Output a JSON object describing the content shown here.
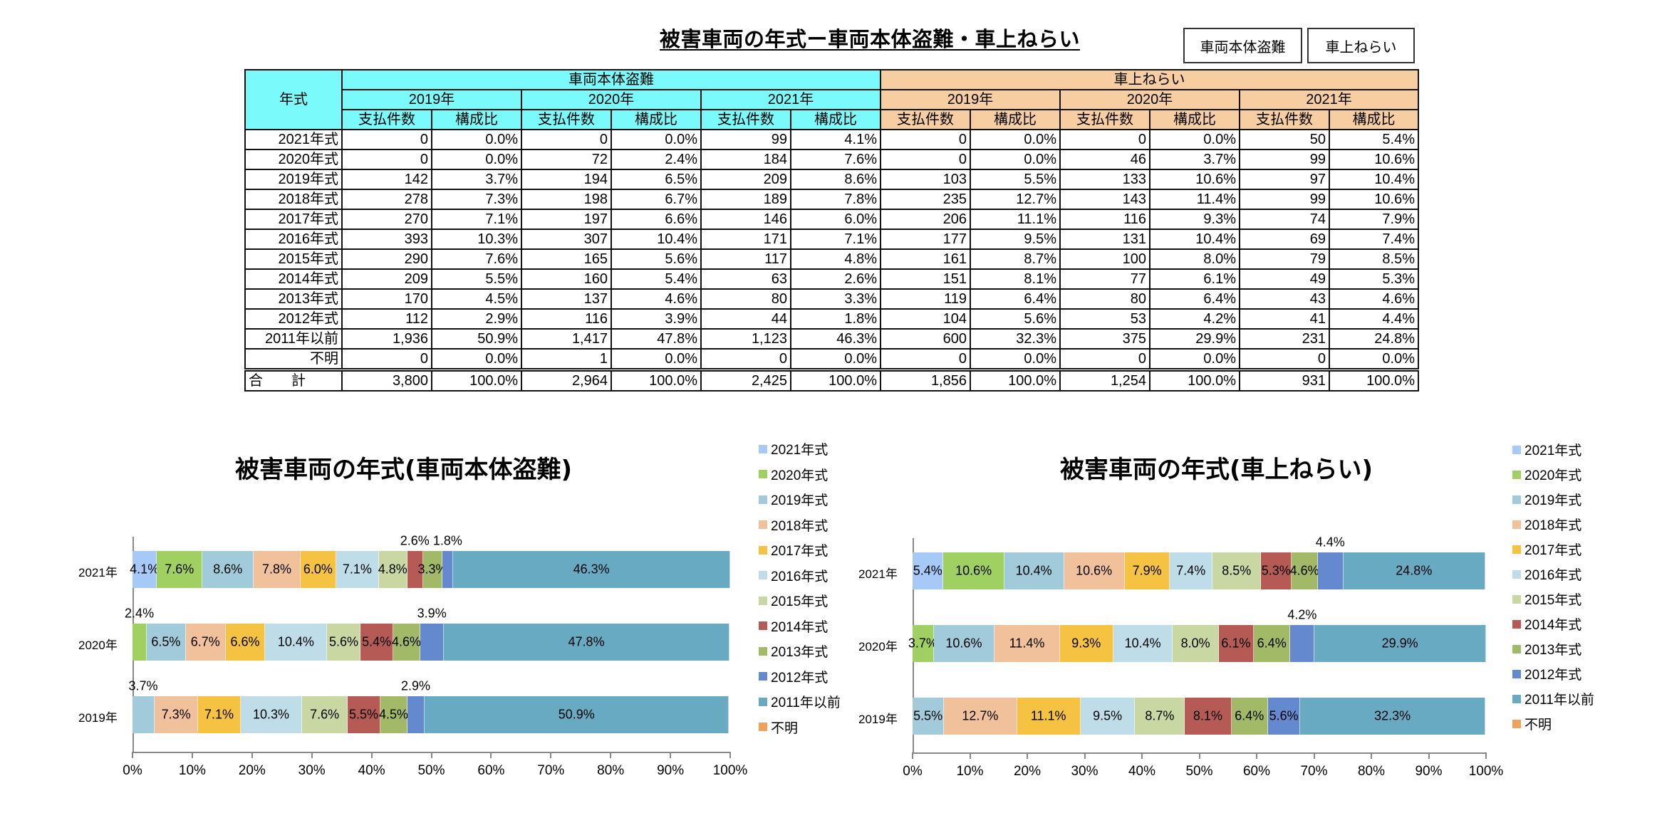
{
  "title": "被害車両の年式ー車両本体盗難・車上ねらい",
  "toggle_buttons": [
    "車両本体盗難",
    "車上ねらい"
  ],
  "table": {
    "corner_header": "年式",
    "groups": [
      {
        "label": "車両本体盗難",
        "color": "#7AFAFB"
      },
      {
        "label": "車上ねらい",
        "color": "#F7CDA2"
      }
    ],
    "years": [
      "2019年",
      "2020年",
      "2021年"
    ],
    "sub_headers": [
      "支払件数",
      "構成比"
    ],
    "rows": [
      {
        "label": "2021年式",
        "values": [
          "0",
          "0.0%",
          "0",
          "0.0%",
          "99",
          "4.1%",
          "0",
          "0.0%",
          "0",
          "0.0%",
          "50",
          "5.4%"
        ]
      },
      {
        "label": "2020年式",
        "values": [
          "0",
          "0.0%",
          "72",
          "2.4%",
          "184",
          "7.6%",
          "0",
          "0.0%",
          "46",
          "3.7%",
          "99",
          "10.6%"
        ]
      },
      {
        "label": "2019年式",
        "values": [
          "142",
          "3.7%",
          "194",
          "6.5%",
          "209",
          "8.6%",
          "103",
          "5.5%",
          "133",
          "10.6%",
          "97",
          "10.4%"
        ]
      },
      {
        "label": "2018年式",
        "values": [
          "278",
          "7.3%",
          "198",
          "6.7%",
          "189",
          "7.8%",
          "235",
          "12.7%",
          "143",
          "11.4%",
          "99",
          "10.6%"
        ]
      },
      {
        "label": "2017年式",
        "values": [
          "270",
          "7.1%",
          "197",
          "6.6%",
          "146",
          "6.0%",
          "206",
          "11.1%",
          "116",
          "9.3%",
          "74",
          "7.9%"
        ]
      },
      {
        "label": "2016年式",
        "values": [
          "393",
          "10.3%",
          "307",
          "10.4%",
          "171",
          "7.1%",
          "177",
          "9.5%",
          "131",
          "10.4%",
          "69",
          "7.4%"
        ]
      },
      {
        "label": "2015年式",
        "values": [
          "290",
          "7.6%",
          "165",
          "5.6%",
          "117",
          "4.8%",
          "161",
          "8.7%",
          "100",
          "8.0%",
          "79",
          "8.5%"
        ]
      },
      {
        "label": "2014年式",
        "values": [
          "209",
          "5.5%",
          "160",
          "5.4%",
          "63",
          "2.6%",
          "151",
          "8.1%",
          "77",
          "6.1%",
          "49",
          "5.3%"
        ]
      },
      {
        "label": "2013年式",
        "values": [
          "170",
          "4.5%",
          "137",
          "4.6%",
          "80",
          "3.3%",
          "119",
          "6.4%",
          "80",
          "6.4%",
          "43",
          "4.6%"
        ]
      },
      {
        "label": "2012年式",
        "values": [
          "112",
          "2.9%",
          "116",
          "3.9%",
          "44",
          "1.8%",
          "104",
          "5.6%",
          "53",
          "4.2%",
          "41",
          "4.4%"
        ]
      },
      {
        "label": "2011年以前",
        "values": [
          "1,936",
          "50.9%",
          "1,417",
          "47.8%",
          "1,123",
          "46.3%",
          "600",
          "32.3%",
          "375",
          "29.9%",
          "231",
          "24.8%"
        ]
      },
      {
        "label": "不明",
        "values": [
          "0",
          "0.0%",
          "1",
          "0.0%",
          "0",
          "0.0%",
          "0",
          "0.0%",
          "0",
          "0.0%",
          "0",
          "0.0%"
        ]
      }
    ],
    "total": {
      "label": "合　　計",
      "values": [
        "3,800",
        "100.0%",
        "2,964",
        "100.0%",
        "2,425",
        "100.0%",
        "1,856",
        "100.0%",
        "1,254",
        "100.0%",
        "931",
        "100.0%"
      ]
    }
  },
  "chart_data": [
    {
      "type": "bar",
      "orientation": "horizontal",
      "stacked": "100%",
      "title": "被害車両の年式(車両本体盗難)",
      "categories": [
        "2021年",
        "2020年",
        "2019年"
      ],
      "xlabel": "",
      "ylabel": "",
      "xlim": [
        0,
        100
      ],
      "x_ticks": [
        "0%",
        "10%",
        "20%",
        "30%",
        "40%",
        "50%",
        "60%",
        "70%",
        "80%",
        "90%",
        "100%"
      ],
      "legend_position": "right",
      "grid": false,
      "series": [
        {
          "name": "2021年式",
          "color": "#A6C9F7",
          "values": [
            4.1,
            0.0,
            0.0
          ]
        },
        {
          "name": "2020年式",
          "color": "#A0CF62",
          "values": [
            7.6,
            2.4,
            0.0
          ]
        },
        {
          "name": "2019年式",
          "color": "#A1CBDB",
          "values": [
            8.6,
            6.5,
            3.7
          ]
        },
        {
          "name": "2018年式",
          "color": "#F1C19B",
          "values": [
            7.8,
            6.7,
            7.3
          ]
        },
        {
          "name": "2017年式",
          "color": "#F5C242",
          "values": [
            6.0,
            6.6,
            7.1
          ]
        },
        {
          "name": "2016年式",
          "color": "#BEDDE8",
          "values": [
            7.1,
            10.4,
            10.3
          ]
        },
        {
          "name": "2015年式",
          "color": "#C9D7A3",
          "values": [
            4.8,
            5.6,
            7.6
          ]
        },
        {
          "name": "2014年式",
          "color": "#B65A55",
          "values": [
            2.6,
            5.4,
            5.5
          ]
        },
        {
          "name": "2013年式",
          "color": "#A2BA68",
          "values": [
            3.3,
            4.6,
            4.5
          ]
        },
        {
          "name": "2012年式",
          "color": "#6489CF",
          "values": [
            1.8,
            3.9,
            2.9
          ]
        },
        {
          "name": "2011年以前",
          "color": "#67AAC2",
          "values": [
            46.3,
            47.8,
            50.9
          ]
        },
        {
          "name": "不明",
          "color": "#F0A15A",
          "values": [
            0.0,
            0.0,
            0.0
          ]
        }
      ],
      "labels_above": {
        "2021年": [
          "2014年式",
          "2012年式"
        ],
        "2020年": [
          "2020年式",
          "2012年式"
        ],
        "2019年": [
          "2019年式",
          "2012年式"
        ]
      }
    },
    {
      "type": "bar",
      "orientation": "horizontal",
      "stacked": "100%",
      "title": "被害車両の年式(車上ねらい)",
      "categories": [
        "2021年",
        "2020年",
        "2019年"
      ],
      "xlabel": "",
      "ylabel": "",
      "xlim": [
        0,
        100
      ],
      "x_ticks": [
        "0%",
        "10%",
        "20%",
        "30%",
        "40%",
        "50%",
        "60%",
        "70%",
        "80%",
        "90%",
        "100%"
      ],
      "legend_position": "right",
      "grid": false,
      "series": [
        {
          "name": "2021年式",
          "color": "#A6C9F7",
          "values": [
            5.4,
            0.0,
            0.0
          ]
        },
        {
          "name": "2020年式",
          "color": "#A0CF62",
          "values": [
            10.6,
            3.7,
            0.0
          ]
        },
        {
          "name": "2019年式",
          "color": "#A1CBDB",
          "values": [
            10.4,
            10.6,
            5.5
          ]
        },
        {
          "name": "2018年式",
          "color": "#F1C19B",
          "values": [
            10.6,
            11.4,
            12.7
          ]
        },
        {
          "name": "2017年式",
          "color": "#F5C242",
          "values": [
            7.9,
            9.3,
            11.1
          ]
        },
        {
          "name": "2016年式",
          "color": "#BEDDE8",
          "values": [
            7.4,
            10.4,
            9.5
          ]
        },
        {
          "name": "2015年式",
          "color": "#C9D7A3",
          "values": [
            8.5,
            8.0,
            8.7
          ]
        },
        {
          "name": "2014年式",
          "color": "#B65A55",
          "values": [
            5.3,
            6.1,
            8.1
          ]
        },
        {
          "name": "2013年式",
          "color": "#A2BA68",
          "values": [
            4.6,
            6.4,
            6.4
          ]
        },
        {
          "name": "2012年式",
          "color": "#6489CF",
          "values": [
            4.4,
            4.2,
            5.6
          ]
        },
        {
          "name": "2011年以前",
          "color": "#67AAC2",
          "values": [
            24.8,
            29.9,
            32.3
          ]
        },
        {
          "name": "不明",
          "color": "#F0A15A",
          "values": [
            0.0,
            0.0,
            0.0
          ]
        }
      ],
      "labels_above": {
        "2021年": [
          "2012年式"
        ],
        "2020年": [
          "2012年式"
        ],
        "2019年": []
      }
    }
  ]
}
